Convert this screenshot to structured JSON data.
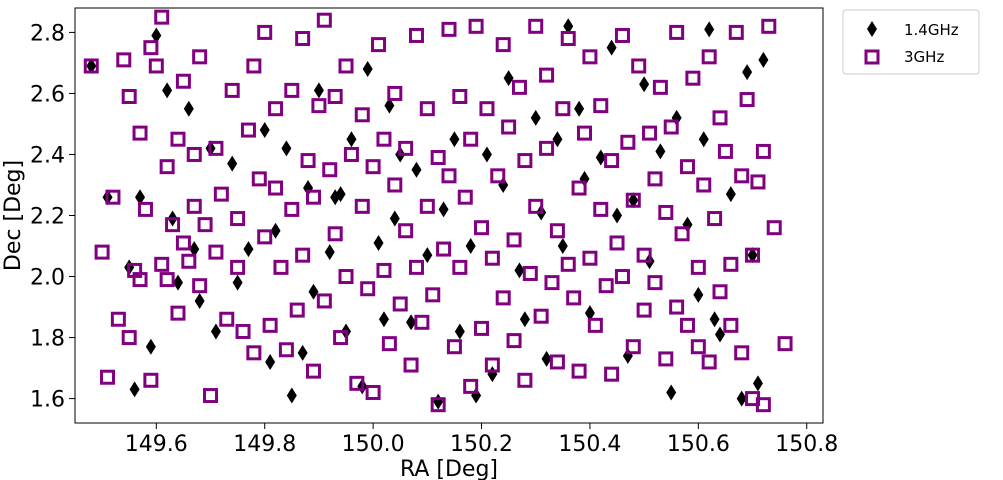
{
  "chart_data": {
    "type": "scatter",
    "title": "",
    "xlabel": "RA [Deg]",
    "ylabel": "Dec [Deg]",
    "xlim": [
      149.45,
      150.83
    ],
    "ylim": [
      1.52,
      2.88
    ],
    "xticks": [
      149.6,
      149.8,
      150.0,
      150.2,
      150.4,
      150.6,
      150.8
    ],
    "xtick_labels": [
      "149.6",
      "149.8",
      "150.0",
      "150.2",
      "150.4",
      "150.6",
      "150.8"
    ],
    "yticks": [
      1.6,
      1.8,
      2.0,
      2.2,
      2.4,
      2.6,
      2.8
    ],
    "ytick_labels": [
      "1.6",
      "1.8",
      "2.0",
      "2.2",
      "2.4",
      "2.6",
      "2.8"
    ],
    "grid": false,
    "legend_position": "outside-top-right",
    "colors": {
      "series_1": "#000000",
      "series_2": "#800080"
    },
    "series": [
      {
        "name": "1.4GHz",
        "marker": "diamond",
        "points": [
          [
            149.48,
            2.69
          ],
          [
            149.51,
            2.26
          ],
          [
            149.55,
            2.03
          ],
          [
            149.56,
            1.63
          ],
          [
            149.57,
            2.26
          ],
          [
            149.59,
            1.77
          ],
          [
            149.6,
            2.79
          ],
          [
            149.62,
            2.61
          ],
          [
            149.63,
            2.19
          ],
          [
            149.64,
            1.98
          ],
          [
            149.66,
            2.55
          ],
          [
            149.67,
            2.09
          ],
          [
            149.68,
            1.92
          ],
          [
            149.7,
            2.42
          ],
          [
            149.71,
            1.82
          ],
          [
            149.74,
            2.37
          ],
          [
            149.75,
            1.98
          ],
          [
            149.77,
            2.09
          ],
          [
            149.8,
            2.48
          ],
          [
            149.81,
            1.72
          ],
          [
            149.82,
            2.15
          ],
          [
            149.84,
            2.42
          ],
          [
            149.85,
            1.61
          ],
          [
            149.87,
            1.75
          ],
          [
            149.88,
            2.29
          ],
          [
            149.89,
            1.95
          ],
          [
            149.9,
            2.61
          ],
          [
            149.92,
            2.08
          ],
          [
            149.93,
            2.26
          ],
          [
            149.94,
            2.27
          ],
          [
            149.95,
            1.82
          ],
          [
            149.96,
            2.45
          ],
          [
            149.98,
            1.64
          ],
          [
            149.99,
            2.68
          ],
          [
            150.01,
            2.11
          ],
          [
            150.02,
            1.86
          ],
          [
            150.03,
            2.56
          ],
          [
            150.04,
            2.19
          ],
          [
            150.05,
            2.4
          ],
          [
            150.07,
            1.85
          ],
          [
            150.08,
            2.35
          ],
          [
            150.1,
            2.07
          ],
          [
            150.12,
            1.59
          ],
          [
            150.13,
            2.22
          ],
          [
            150.15,
            2.45
          ],
          [
            150.16,
            1.82
          ],
          [
            150.18,
            2.1
          ],
          [
            150.19,
            1.61
          ],
          [
            150.21,
            2.4
          ],
          [
            150.22,
            1.68
          ],
          [
            150.24,
            2.3
          ],
          [
            150.25,
            2.65
          ],
          [
            150.27,
            2.02
          ],
          [
            150.28,
            1.86
          ],
          [
            150.3,
            2.52
          ],
          [
            150.31,
            2.21
          ],
          [
            150.32,
            1.73
          ],
          [
            150.34,
            2.45
          ],
          [
            150.35,
            2.1
          ],
          [
            150.36,
            2.82
          ],
          [
            150.38,
            2.55
          ],
          [
            150.39,
            2.32
          ],
          [
            150.4,
            1.88
          ],
          [
            150.42,
            2.39
          ],
          [
            150.44,
            2.75
          ],
          [
            150.45,
            2.2
          ],
          [
            150.47,
            1.74
          ],
          [
            150.48,
            2.25
          ],
          [
            150.5,
            2.63
          ],
          [
            150.51,
            2.05
          ],
          [
            150.53,
            2.41
          ],
          [
            150.55,
            1.62
          ],
          [
            150.56,
            2.52
          ],
          [
            150.58,
            2.17
          ],
          [
            150.6,
            1.94
          ],
          [
            150.61,
            2.45
          ],
          [
            150.62,
            2.81
          ],
          [
            150.63,
            1.86
          ],
          [
            150.64,
            1.81
          ],
          [
            150.66,
            2.27
          ],
          [
            150.68,
            1.6
          ],
          [
            150.69,
            2.67
          ],
          [
            150.7,
            2.07
          ],
          [
            150.71,
            1.65
          ],
          [
            150.72,
            2.71
          ]
        ]
      },
      {
        "name": "3GHz",
        "marker": "square",
        "points": [
          [
            149.48,
            2.69
          ],
          [
            149.5,
            2.08
          ],
          [
            149.51,
            1.67
          ],
          [
            149.52,
            2.26
          ],
          [
            149.53,
            1.86
          ],
          [
            149.54,
            2.71
          ],
          [
            149.55,
            2.59
          ],
          [
            149.55,
            1.8
          ],
          [
            149.56,
            2.02
          ],
          [
            149.57,
            2.47
          ],
          [
            149.57,
            1.99
          ],
          [
            149.58,
            2.22
          ],
          [
            149.59,
            2.75
          ],
          [
            149.59,
            1.66
          ],
          [
            149.6,
            2.69
          ],
          [
            149.61,
            2.85
          ],
          [
            149.61,
            2.04
          ],
          [
            149.62,
            2.36
          ],
          [
            149.62,
            1.99
          ],
          [
            149.63,
            2.17
          ],
          [
            149.64,
            2.45
          ],
          [
            149.64,
            1.88
          ],
          [
            149.65,
            2.64
          ],
          [
            149.65,
            2.11
          ],
          [
            149.66,
            2.05
          ],
          [
            149.67,
            2.23
          ],
          [
            149.67,
            2.4
          ],
          [
            149.68,
            2.72
          ],
          [
            149.68,
            1.97
          ],
          [
            149.69,
            2.17
          ],
          [
            149.7,
            1.61
          ],
          [
            149.71,
            2.08
          ],
          [
            149.71,
            2.42
          ],
          [
            149.72,
            2.27
          ],
          [
            149.73,
            1.86
          ],
          [
            149.74,
            2.61
          ],
          [
            149.75,
            2.03
          ],
          [
            149.75,
            2.19
          ],
          [
            149.76,
            1.82
          ],
          [
            149.77,
            2.48
          ],
          [
            149.78,
            2.69
          ],
          [
            149.78,
            1.75
          ],
          [
            149.79,
            2.32
          ],
          [
            149.8,
            2.13
          ],
          [
            149.8,
            2.8
          ],
          [
            149.81,
            1.84
          ],
          [
            149.82,
            2.55
          ],
          [
            149.82,
            2.29
          ],
          [
            149.83,
            2.03
          ],
          [
            149.84,
            1.76
          ],
          [
            149.85,
            2.22
          ],
          [
            149.85,
            2.61
          ],
          [
            149.86,
            1.89
          ],
          [
            149.87,
            2.78
          ],
          [
            149.87,
            2.07
          ],
          [
            149.88,
            2.38
          ],
          [
            149.89,
            1.69
          ],
          [
            149.89,
            2.26
          ],
          [
            149.9,
            2.56
          ],
          [
            149.91,
            1.92
          ],
          [
            149.91,
            2.84
          ],
          [
            149.92,
            2.35
          ],
          [
            149.93,
            2.14
          ],
          [
            149.93,
            2.59
          ],
          [
            149.94,
            1.8
          ],
          [
            149.95,
            2.69
          ],
          [
            149.95,
            2.0
          ],
          [
            149.96,
            2.4
          ],
          [
            149.97,
            1.65
          ],
          [
            149.98,
            2.23
          ],
          [
            149.98,
            2.53
          ],
          [
            149.99,
            1.96
          ],
          [
            150.0,
            2.36
          ],
          [
            150.0,
            1.62
          ],
          [
            150.01,
            2.76
          ],
          [
            150.02,
            2.02
          ],
          [
            150.02,
            2.45
          ],
          [
            150.03,
            1.78
          ],
          [
            150.04,
            2.3
          ],
          [
            150.04,
            2.6
          ],
          [
            150.05,
            1.91
          ],
          [
            150.06,
            2.15
          ],
          [
            150.06,
            2.42
          ],
          [
            150.07,
            1.71
          ],
          [
            150.08,
            2.03
          ],
          [
            150.08,
            2.79
          ],
          [
            150.09,
            1.85
          ],
          [
            150.1,
            2.23
          ],
          [
            150.1,
            2.55
          ],
          [
            150.11,
            1.94
          ],
          [
            150.12,
            2.39
          ],
          [
            150.12,
            1.58
          ],
          [
            150.13,
            2.09
          ],
          [
            150.14,
            2.81
          ],
          [
            150.14,
            2.33
          ],
          [
            150.15,
            1.77
          ],
          [
            150.16,
            2.59
          ],
          [
            150.16,
            2.03
          ],
          [
            150.17,
            2.26
          ],
          [
            150.18,
            1.64
          ],
          [
            150.18,
            2.45
          ],
          [
            150.19,
            2.82
          ],
          [
            150.2,
            1.83
          ],
          [
            150.2,
            2.16
          ],
          [
            150.21,
            2.55
          ],
          [
            150.22,
            2.06
          ],
          [
            150.22,
            1.71
          ],
          [
            150.23,
            2.33
          ],
          [
            150.24,
            2.76
          ],
          [
            150.24,
            1.93
          ],
          [
            150.25,
            2.49
          ],
          [
            150.26,
            2.12
          ],
          [
            150.26,
            1.79
          ],
          [
            150.27,
            2.62
          ],
          [
            150.28,
            2.38
          ],
          [
            150.28,
            1.66
          ],
          [
            150.29,
            2.01
          ],
          [
            150.3,
            2.82
          ],
          [
            150.3,
            2.23
          ],
          [
            150.31,
            1.87
          ],
          [
            150.32,
            2.42
          ],
          [
            150.32,
            2.66
          ],
          [
            150.33,
            1.98
          ],
          [
            150.34,
            2.15
          ],
          [
            150.34,
            1.72
          ],
          [
            150.35,
            2.55
          ],
          [
            150.36,
            2.04
          ],
          [
            150.36,
            2.78
          ],
          [
            150.37,
            1.93
          ],
          [
            150.38,
            2.29
          ],
          [
            150.38,
            1.69
          ],
          [
            150.39,
            2.47
          ],
          [
            150.4,
            2.06
          ],
          [
            150.4,
            2.72
          ],
          [
            150.41,
            1.84
          ],
          [
            150.42,
            2.22
          ],
          [
            150.42,
            2.56
          ],
          [
            150.43,
            1.97
          ],
          [
            150.44,
            2.38
          ],
          [
            150.44,
            1.68
          ],
          [
            150.45,
            2.11
          ],
          [
            150.46,
            2.79
          ],
          [
            150.46,
            2.0
          ],
          [
            150.47,
            2.44
          ],
          [
            150.48,
            1.77
          ],
          [
            150.48,
            2.25
          ],
          [
            150.49,
            2.69
          ],
          [
            150.5,
            1.89
          ],
          [
            150.5,
            2.07
          ],
          [
            150.51,
            2.47
          ],
          [
            150.52,
            2.32
          ],
          [
            150.52,
            1.98
          ],
          [
            150.53,
            2.62
          ],
          [
            150.54,
            2.21
          ],
          [
            150.54,
            1.73
          ],
          [
            150.55,
            2.49
          ],
          [
            150.56,
            1.9
          ],
          [
            150.56,
            2.8
          ],
          [
            150.57,
            2.14
          ],
          [
            150.58,
            1.84
          ],
          [
            150.58,
            2.36
          ],
          [
            150.59,
            2.65
          ],
          [
            150.6,
            2.03
          ],
          [
            150.6,
            1.77
          ],
          [
            150.61,
            2.3
          ],
          [
            150.62,
            2.72
          ],
          [
            150.62,
            1.72
          ],
          [
            150.63,
            2.19
          ],
          [
            150.64,
            2.52
          ],
          [
            150.64,
            1.95
          ],
          [
            150.65,
            2.41
          ],
          [
            150.66,
            1.84
          ],
          [
            150.66,
            2.04
          ],
          [
            150.67,
            2.8
          ],
          [
            150.68,
            2.33
          ],
          [
            150.68,
            1.75
          ],
          [
            150.69,
            2.58
          ],
          [
            150.7,
            2.07
          ],
          [
            150.7,
            1.6
          ],
          [
            150.71,
            2.31
          ],
          [
            150.72,
            1.58
          ],
          [
            150.72,
            2.41
          ],
          [
            150.73,
            2.82
          ],
          [
            150.74,
            2.16
          ],
          [
            150.76,
            1.78
          ]
        ]
      }
    ]
  }
}
